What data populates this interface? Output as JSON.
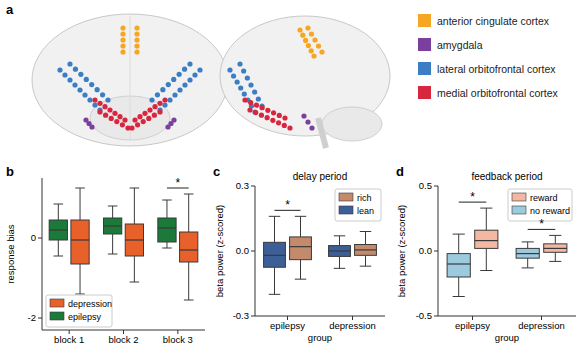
{
  "chart_data": [
    {
      "type": "brain_map",
      "panel": "a",
      "series": [
        {
          "name": "anterior cingulate cortex",
          "color": "#f5a623"
        },
        {
          "name": "amygdala",
          "color": "#7b3f9e"
        },
        {
          "name": "lateral orbitofrontal cortex",
          "color": "#3b7ec4"
        },
        {
          "name": "medial orbitofrontal cortex",
          "color": "#d9263f"
        }
      ]
    },
    {
      "type": "box",
      "panel": "b",
      "ylabel": "response bias",
      "categories": [
        "block 1",
        "block 2",
        "block 3"
      ],
      "ylim": [
        -2.3,
        1.5
      ],
      "yticks": [
        -2,
        0
      ],
      "legend": "lower left",
      "series": [
        {
          "name": "epilepsy",
          "color": "#1b7a3a",
          "min": [
            -0.45,
            -0.4,
            -0.25
          ],
          "q1": [
            -0.05,
            0.1,
            -0.1
          ],
          "median": [
            0.2,
            0.3,
            0.25
          ],
          "q3": [
            0.45,
            0.5,
            0.5
          ],
          "max": [
            0.85,
            0.8,
            0.95
          ]
        },
        {
          "name": "depression",
          "color": "#e8602a",
          "min": [
            -1.4,
            -1.1,
            -1.55
          ],
          "q1": [
            -0.65,
            -0.45,
            -0.6
          ],
          "median": [
            -0.05,
            -0.05,
            -0.3
          ],
          "q3": [
            0.45,
            0.35,
            0.15
          ],
          "max": [
            1.25,
            1.25,
            1.1
          ]
        }
      ],
      "annotations": [
        {
          "text": "*",
          "category": "block 3"
        }
      ]
    },
    {
      "type": "box",
      "panel": "c",
      "title": "delay period",
      "xlabel": "group",
      "ylabel": "beta power (z-scored)",
      "categories": [
        "epilepsy",
        "depression"
      ],
      "ylim": [
        -0.3,
        0.3
      ],
      "yticks": [
        -0.3,
        {
          "value": 0,
          "label": "0.0"
        },
        0.3
      ],
      "legend": "upper right",
      "series": [
        {
          "name": "lean",
          "color": "#3d5f98",
          "min": [
            -0.2,
            -0.08
          ],
          "q1": [
            -0.075,
            -0.025
          ],
          "median": [
            -0.02,
            0.0
          ],
          "q3": [
            0.04,
            0.025
          ],
          "max": [
            0.16,
            0.07
          ]
        },
        {
          "name": "rich",
          "color": "#c48a6c",
          "min": [
            -0.13,
            -0.07
          ],
          "q1": [
            -0.04,
            -0.02
          ],
          "median": [
            0.02,
            0.005
          ],
          "q3": [
            0.065,
            0.03
          ],
          "max": [
            0.16,
            0.09
          ]
        }
      ],
      "annotations": [
        {
          "text": "*",
          "category": "epilepsy"
        }
      ]
    },
    {
      "type": "box",
      "panel": "d",
      "title": "feedback period",
      "xlabel": "group",
      "ylabel": "beta power (z-scored)",
      "categories": [
        "epilepsy",
        "depression"
      ],
      "ylim": [
        -0.5,
        0.5
      ],
      "yticks": [
        -0.5,
        {
          "value": 0,
          "label": "0.0"
        },
        0.5
      ],
      "legend": "upper right",
      "series": [
        {
          "name": "no reward",
          "color": "#9ccbe0",
          "min": [
            -0.35,
            -0.13
          ],
          "q1": [
            -0.2,
            -0.055
          ],
          "median": [
            -0.1,
            -0.02
          ],
          "q3": [
            -0.02,
            0.02
          ],
          "max": [
            0.13,
            0.07
          ]
        },
        {
          "name": "reward",
          "color": "#f4b7a1",
          "min": [
            -0.15,
            -0.08
          ],
          "q1": [
            0.02,
            -0.01
          ],
          "median": [
            0.08,
            0.02
          ],
          "q3": [
            0.16,
            0.055
          ],
          "max": [
            0.33,
            0.12
          ]
        }
      ],
      "annotations": [
        {
          "text": "*",
          "category": "epilepsy"
        },
        {
          "text": "*",
          "category": "depression"
        }
      ]
    }
  ]
}
